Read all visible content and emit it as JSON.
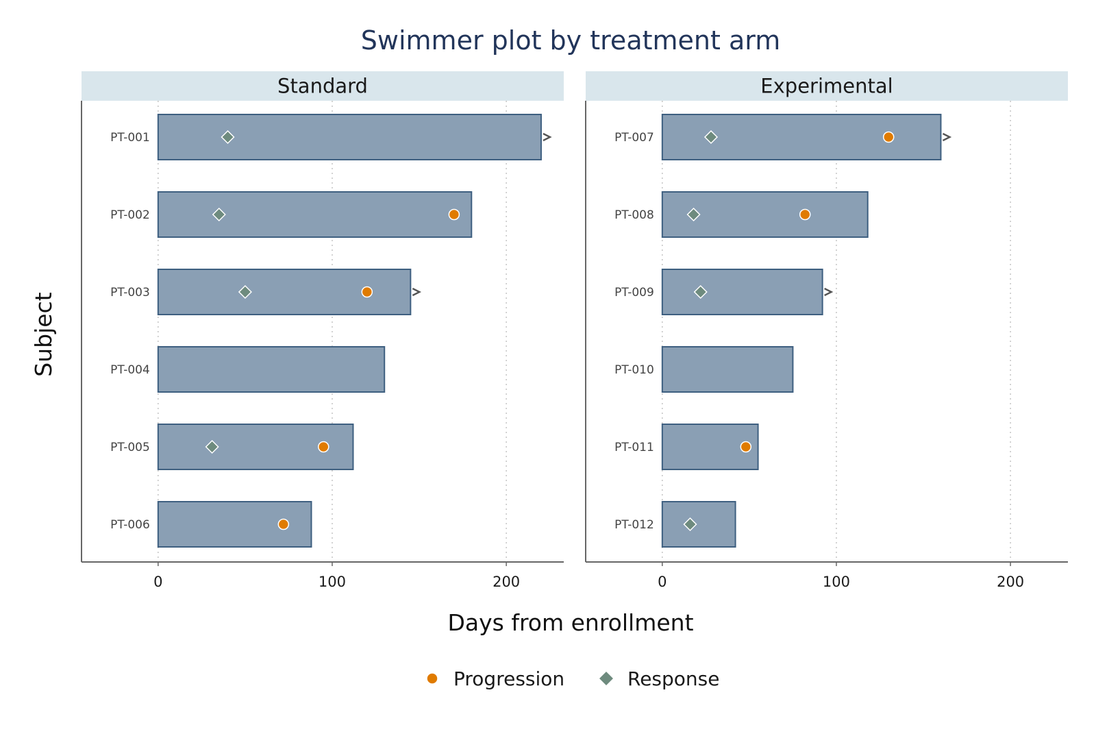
{
  "chart_data": {
    "type": "bar",
    "subtype": "swimmer",
    "title": "Swimmer plot by treatment arm",
    "xlabel": "Days from enrollment",
    "ylabel": "Subject",
    "xlim": [
      -44,
      233
    ],
    "x_ticks": [
      0,
      100,
      200
    ],
    "grid": "x dotted",
    "legend_position": "bottom",
    "legend": [
      {
        "key": "progression",
        "label": "Progression",
        "marker": "circle",
        "color": "#E07B00"
      },
      {
        "key": "response",
        "label": "Response",
        "marker": "diamond",
        "color": "#6E8B7E"
      }
    ],
    "colors": {
      "bar_fill": "#8A9FB4",
      "bar_stroke": "#3E5F80",
      "strip_fill": "#D9E6EC",
      "title": "#22355A",
      "arrow": "#555555"
    },
    "panels": [
      {
        "name": "Standard",
        "subjects": [
          {
            "id": "PT-001",
            "duration": 220,
            "ongoing": true,
            "response": 40,
            "progression": null
          },
          {
            "id": "PT-002",
            "duration": 180,
            "ongoing": false,
            "response": 35,
            "progression": 170
          },
          {
            "id": "PT-003",
            "duration": 145,
            "ongoing": true,
            "response": 50,
            "progression": 120
          },
          {
            "id": "PT-004",
            "duration": 130,
            "ongoing": false,
            "response": null,
            "progression": null
          },
          {
            "id": "PT-005",
            "duration": 112,
            "ongoing": false,
            "response": 31,
            "progression": 95
          },
          {
            "id": "PT-006",
            "duration": 88,
            "ongoing": false,
            "response": null,
            "progression": 72
          }
        ]
      },
      {
        "name": "Experimental",
        "subjects": [
          {
            "id": "PT-007",
            "duration": 160,
            "ongoing": true,
            "response": 28,
            "progression": 130
          },
          {
            "id": "PT-008",
            "duration": 118,
            "ongoing": false,
            "response": 18,
            "progression": 82
          },
          {
            "id": "PT-009",
            "duration": 92,
            "ongoing": true,
            "response": 22,
            "progression": null
          },
          {
            "id": "PT-010",
            "duration": 75,
            "ongoing": false,
            "response": null,
            "progression": null
          },
          {
            "id": "PT-011",
            "duration": 55,
            "ongoing": false,
            "response": null,
            "progression": 48
          },
          {
            "id": "PT-012",
            "duration": 42,
            "ongoing": false,
            "response": 16,
            "progression": null
          }
        ]
      }
    ]
  }
}
